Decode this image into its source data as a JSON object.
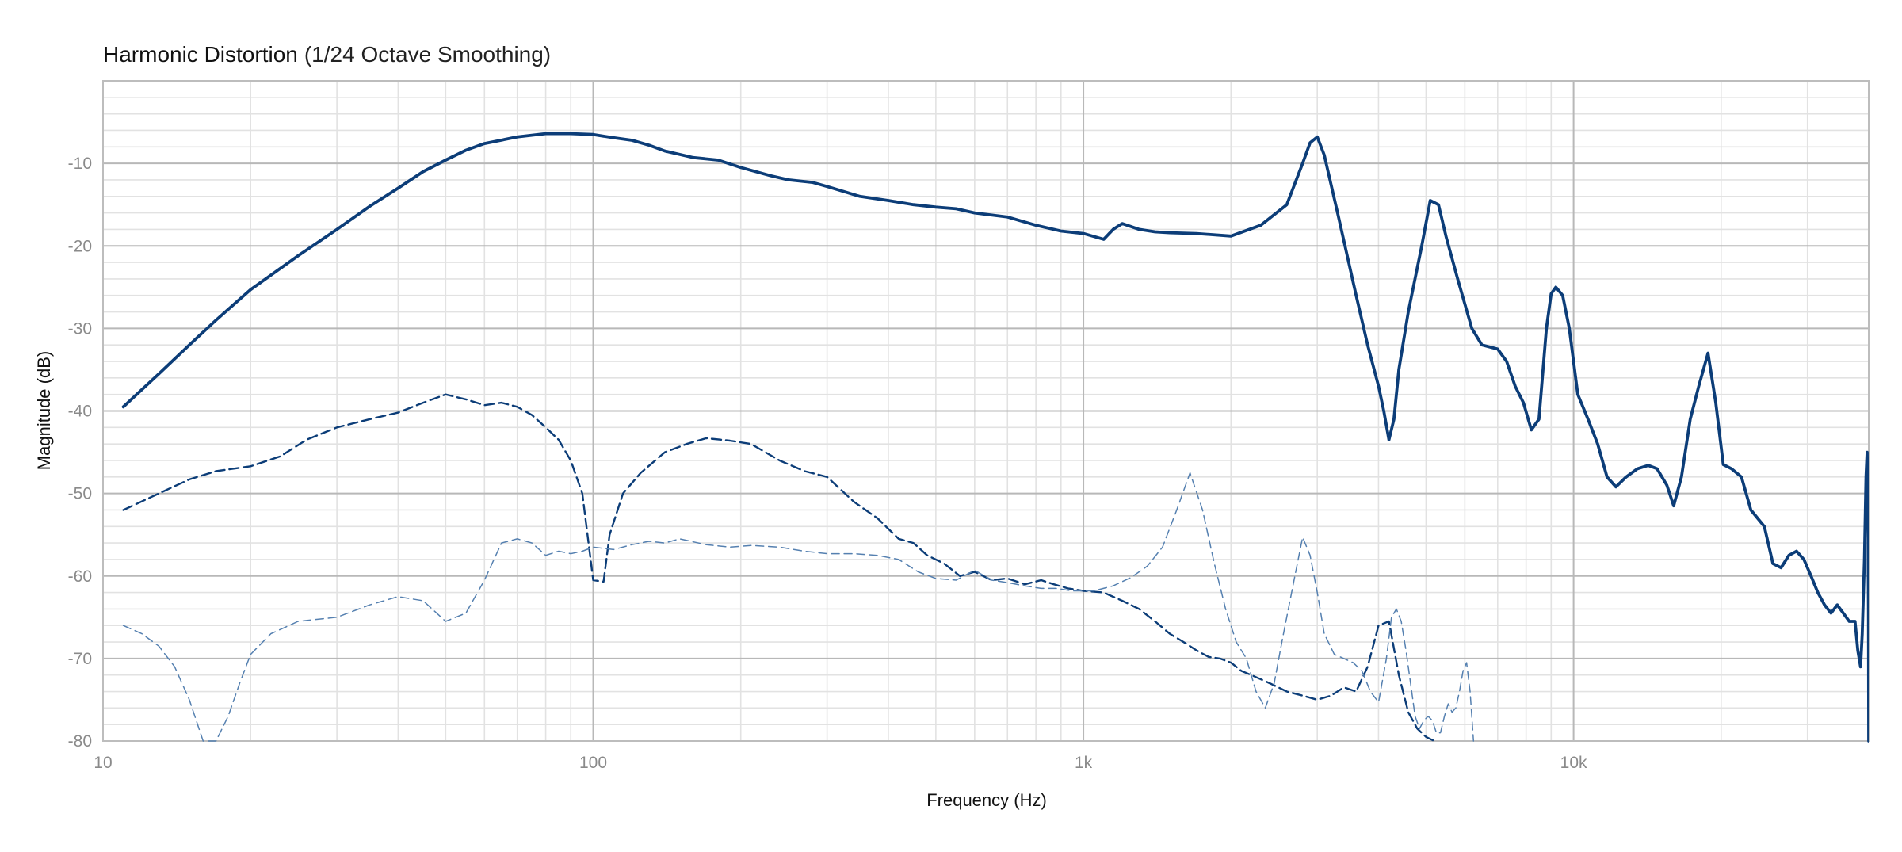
{
  "chart_data": {
    "type": "line",
    "title": "Harmonic Distortion",
    "subtitle": "(1/24 Octave Smoothing)",
    "xlabel": "Frequency (Hz)",
    "ylabel": "Magnitude (dB)",
    "xscale": "log",
    "xlim": [
      10,
      40000
    ],
    "ylim": [
      -80,
      0
    ],
    "grid": true,
    "x_ticks": [
      {
        "value": 10,
        "label": "10"
      },
      {
        "value": 100,
        "label": "100"
      },
      {
        "value": 1000,
        "label": "1k"
      },
      {
        "value": 10000,
        "label": "10k"
      }
    ],
    "y_ticks": [
      {
        "value": -10,
        "label": "-10"
      },
      {
        "value": -20,
        "label": "-20"
      },
      {
        "value": -30,
        "label": "-30"
      },
      {
        "value": -40,
        "label": "-40"
      },
      {
        "value": -50,
        "label": "-50"
      },
      {
        "value": -60,
        "label": "-60"
      },
      {
        "value": -70,
        "label": "-70"
      },
      {
        "value": -80,
        "label": "-80"
      }
    ],
    "series": [
      {
        "style": "solid",
        "color": "#0c3d78",
        "points": [
          [
            11,
            -39.5
          ],
          [
            13,
            -35.5
          ],
          [
            15,
            -32
          ],
          [
            17,
            -29
          ],
          [
            20,
            -25.3
          ],
          [
            25,
            -21.2
          ],
          [
            30,
            -18
          ],
          [
            35,
            -15.2
          ],
          [
            40,
            -13
          ],
          [
            45,
            -11
          ],
          [
            50,
            -9.6
          ],
          [
            55,
            -8.4
          ],
          [
            60,
            -7.6
          ],
          [
            70,
            -6.8
          ],
          [
            80,
            -6.4
          ],
          [
            90,
            -6.4
          ],
          [
            100,
            -6.5
          ],
          [
            110,
            -6.9
          ],
          [
            120,
            -7.2
          ],
          [
            130,
            -7.8
          ],
          [
            140,
            -8.5
          ],
          [
            160,
            -9.3
          ],
          [
            180,
            -9.6
          ],
          [
            200,
            -10.5
          ],
          [
            230,
            -11.5
          ],
          [
            250,
            -12
          ],
          [
            280,
            -12.3
          ],
          [
            300,
            -12.8
          ],
          [
            350,
            -14
          ],
          [
            400,
            -14.5
          ],
          [
            450,
            -15
          ],
          [
            500,
            -15.3
          ],
          [
            550,
            -15.5
          ],
          [
            600,
            -16
          ],
          [
            700,
            -16.5
          ],
          [
            800,
            -17.5
          ],
          [
            900,
            -18.2
          ],
          [
            1000,
            -18.5
          ],
          [
            1100,
            -19.2
          ],
          [
            1150,
            -18
          ],
          [
            1200,
            -17.3
          ],
          [
            1300,
            -18
          ],
          [
            1400,
            -18.3
          ],
          [
            1500,
            -18.4
          ],
          [
            1700,
            -18.5
          ],
          [
            2000,
            -18.8
          ],
          [
            2300,
            -17.5
          ],
          [
            2600,
            -15
          ],
          [
            2800,
            -10
          ],
          [
            2900,
            -7.5
          ],
          [
            3000,
            -6.8
          ],
          [
            3100,
            -9
          ],
          [
            3300,
            -16
          ],
          [
            3600,
            -26
          ],
          [
            3800,
            -32
          ],
          [
            4000,
            -37
          ],
          [
            4100,
            -40
          ],
          [
            4200,
            -43.5
          ],
          [
            4300,
            -41
          ],
          [
            4400,
            -35
          ],
          [
            4600,
            -28
          ],
          [
            4900,
            -20
          ],
          [
            5100,
            -14.5
          ],
          [
            5300,
            -15
          ],
          [
            5500,
            -19
          ],
          [
            5800,
            -24
          ],
          [
            6200,
            -30
          ],
          [
            6500,
            -32
          ],
          [
            7000,
            -32.5
          ],
          [
            7300,
            -34
          ],
          [
            7600,
            -37
          ],
          [
            7900,
            -39
          ],
          [
            8200,
            -42.3
          ],
          [
            8500,
            -41
          ],
          [
            8800,
            -30
          ],
          [
            9000,
            -25.8
          ],
          [
            9200,
            -25
          ],
          [
            9500,
            -26
          ],
          [
            9800,
            -30
          ],
          [
            10200,
            -38
          ],
          [
            10700,
            -41
          ],
          [
            11200,
            -44
          ],
          [
            11700,
            -48
          ],
          [
            12200,
            -49.2
          ],
          [
            12800,
            -48
          ],
          [
            13500,
            -47
          ],
          [
            14200,
            -46.6
          ],
          [
            14800,
            -47
          ],
          [
            15500,
            -49
          ],
          [
            16000,
            -51.5
          ],
          [
            16600,
            -48
          ],
          [
            17300,
            -41
          ],
          [
            18000,
            -37
          ],
          [
            18800,
            -33
          ],
          [
            19500,
            -39
          ],
          [
            20200,
            -46.5
          ],
          [
            21000,
            -47
          ],
          [
            22000,
            -48
          ],
          [
            23000,
            -52
          ],
          [
            24500,
            -54
          ],
          [
            25500,
            -58.5
          ],
          [
            26500,
            -59
          ],
          [
            27500,
            -57.5
          ],
          [
            28500,
            -57
          ],
          [
            29500,
            -58
          ],
          [
            30500,
            -60
          ],
          [
            31500,
            -62
          ],
          [
            32500,
            -63.5
          ],
          [
            33500,
            -64.5
          ],
          [
            34500,
            -63.5
          ],
          [
            35500,
            -64.5
          ],
          [
            36500,
            -65.5
          ],
          [
            37500,
            -65.5
          ],
          [
            38000,
            -69
          ],
          [
            38500,
            -71
          ],
          [
            38800,
            -67
          ],
          [
            39200,
            -58
          ],
          [
            39500,
            -48
          ],
          [
            39700,
            -45
          ],
          [
            39850,
            -52
          ],
          [
            39950,
            -64
          ],
          [
            40000,
            -80
          ]
        ]
      },
      {
        "style": "dashed",
        "color": "#0c3d78",
        "points": [
          [
            11,
            -52
          ],
          [
            13,
            -50
          ],
          [
            15,
            -48.3
          ],
          [
            17,
            -47.3
          ],
          [
            20,
            -46.7
          ],
          [
            23,
            -45.5
          ],
          [
            26,
            -43.5
          ],
          [
            30,
            -42
          ],
          [
            35,
            -41
          ],
          [
            40,
            -40.2
          ],
          [
            45,
            -39
          ],
          [
            50,
            -38
          ],
          [
            55,
            -38.6
          ],
          [
            60,
            -39.3
          ],
          [
            65,
            -39
          ],
          [
            70,
            -39.5
          ],
          [
            75,
            -40.5
          ],
          [
            80,
            -42
          ],
          [
            85,
            -43.5
          ],
          [
            90,
            -46
          ],
          [
            95,
            -50
          ],
          [
            100,
            -60.5
          ],
          [
            105,
            -60.7
          ],
          [
            108,
            -55
          ],
          [
            115,
            -50
          ],
          [
            125,
            -47.5
          ],
          [
            140,
            -45
          ],
          [
            155,
            -44
          ],
          [
            170,
            -43.3
          ],
          [
            190,
            -43.6
          ],
          [
            210,
            -44
          ],
          [
            240,
            -46
          ],
          [
            270,
            -47.3
          ],
          [
            300,
            -48
          ],
          [
            340,
            -51
          ],
          [
            380,
            -53
          ],
          [
            420,
            -55.5
          ],
          [
            450,
            -56
          ],
          [
            480,
            -57.5
          ],
          [
            520,
            -58.5
          ],
          [
            560,
            -60
          ],
          [
            600,
            -59.5
          ],
          [
            650,
            -60.5
          ],
          [
            700,
            -60.3
          ],
          [
            760,
            -61
          ],
          [
            820,
            -60.5
          ],
          [
            870,
            -61
          ],
          [
            930,
            -61.5
          ],
          [
            1000,
            -61.8
          ],
          [
            1100,
            -62
          ],
          [
            1200,
            -63
          ],
          [
            1300,
            -64
          ],
          [
            1400,
            -65.5
          ],
          [
            1500,
            -67
          ],
          [
            1600,
            -68
          ],
          [
            1700,
            -69
          ],
          [
            1800,
            -69.8
          ],
          [
            1900,
            -70
          ],
          [
            2000,
            -70.5
          ],
          [
            2100,
            -71.5
          ],
          [
            2200,
            -72
          ],
          [
            2400,
            -73
          ],
          [
            2600,
            -74
          ],
          [
            2800,
            -74.5
          ],
          [
            3000,
            -75
          ],
          [
            3200,
            -74.5
          ],
          [
            3400,
            -73.5
          ],
          [
            3600,
            -74
          ],
          [
            3800,
            -71
          ],
          [
            4000,
            -66
          ],
          [
            4200,
            -65.5
          ],
          [
            4400,
            -72
          ],
          [
            4600,
            -76.5
          ],
          [
            4800,
            -78.5
          ],
          [
            5000,
            -79.5
          ],
          [
            5200,
            -80
          ]
        ]
      },
      {
        "style": "dashed-thin",
        "color": "#5580b0",
        "points": [
          [
            11,
            -66
          ],
          [
            12,
            -67
          ],
          [
            13,
            -68.5
          ],
          [
            14,
            -71
          ],
          [
            15,
            -75
          ],
          [
            16,
            -80
          ],
          [
            17,
            -80
          ],
          [
            18,
            -77
          ],
          [
            19,
            -73
          ],
          [
            20,
            -69.5
          ],
          [
            22,
            -67
          ],
          [
            25,
            -65.5
          ],
          [
            30,
            -65
          ],
          [
            35,
            -63.5
          ],
          [
            40,
            -62.5
          ],
          [
            45,
            -63
          ],
          [
            50,
            -65.5
          ],
          [
            55,
            -64.5
          ],
          [
            60,
            -60.5
          ],
          [
            65,
            -56
          ],
          [
            70,
            -55.5
          ],
          [
            75,
            -56
          ],
          [
            80,
            -57.5
          ],
          [
            85,
            -57
          ],
          [
            90,
            -57.3
          ],
          [
            95,
            -57
          ],
          [
            100,
            -56.5
          ],
          [
            110,
            -56.8
          ],
          [
            120,
            -56.2
          ],
          [
            130,
            -55.8
          ],
          [
            140,
            -56
          ],
          [
            150,
            -55.5
          ],
          [
            170,
            -56.2
          ],
          [
            190,
            -56.5
          ],
          [
            210,
            -56.3
          ],
          [
            240,
            -56.5
          ],
          [
            270,
            -57
          ],
          [
            300,
            -57.3
          ],
          [
            340,
            -57.3
          ],
          [
            380,
            -57.5
          ],
          [
            420,
            -58
          ],
          [
            460,
            -59.5
          ],
          [
            500,
            -60.3
          ],
          [
            550,
            -60.5
          ],
          [
            600,
            -59.3
          ],
          [
            650,
            -60.5
          ],
          [
            700,
            -60.8
          ],
          [
            760,
            -61.2
          ],
          [
            820,
            -61.5
          ],
          [
            880,
            -61.5
          ],
          [
            950,
            -61.8
          ],
          [
            1050,
            -61.8
          ],
          [
            1150,
            -61.2
          ],
          [
            1250,
            -60.2
          ],
          [
            1350,
            -58.8
          ],
          [
            1450,
            -56.5
          ],
          [
            1550,
            -52
          ],
          [
            1650,
            -47.5
          ],
          [
            1750,
            -52
          ],
          [
            1850,
            -58.5
          ],
          [
            1950,
            -64
          ],
          [
            2050,
            -68
          ],
          [
            2150,
            -70
          ],
          [
            2250,
            -74
          ],
          [
            2350,
            -76
          ],
          [
            2450,
            -73
          ],
          [
            2550,
            -67.5
          ],
          [
            2700,
            -60
          ],
          [
            2800,
            -55.3
          ],
          [
            2900,
            -57.5
          ],
          [
            3000,
            -62
          ],
          [
            3100,
            -67
          ],
          [
            3250,
            -69.5
          ],
          [
            3400,
            -70
          ],
          [
            3550,
            -70.5
          ],
          [
            3700,
            -71.5
          ],
          [
            3850,
            -74
          ],
          [
            4000,
            -75.3
          ],
          [
            4150,
            -70
          ],
          [
            4250,
            -65
          ],
          [
            4350,
            -64
          ],
          [
            4450,
            -65.5
          ],
          [
            4550,
            -69
          ],
          [
            4650,
            -73
          ],
          [
            4750,
            -77
          ],
          [
            4850,
            -78.5
          ],
          [
            4950,
            -77.5
          ],
          [
            5050,
            -77
          ],
          [
            5150,
            -77.5
          ],
          [
            5250,
            -79
          ],
          [
            5350,
            -79
          ],
          [
            5450,
            -77
          ],
          [
            5550,
            -75.5
          ],
          [
            5650,
            -76.5
          ],
          [
            5750,
            -76
          ],
          [
            5850,
            -74
          ],
          [
            5950,
            -71.5
          ],
          [
            6050,
            -70.5
          ],
          [
            6150,
            -74
          ],
          [
            6250,
            -80
          ]
        ]
      }
    ]
  }
}
